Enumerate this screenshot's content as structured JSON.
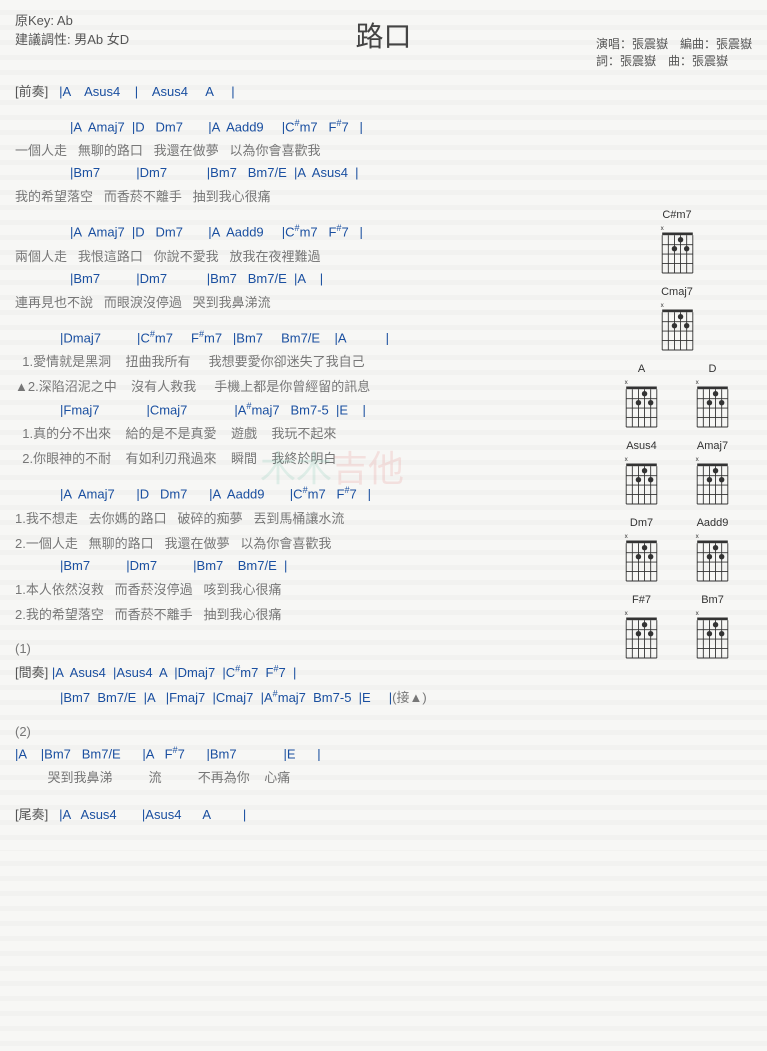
{
  "header": {
    "original_key": "原Key: Ab",
    "suggested_key": "建議調性: 男Ab 女D",
    "title": "路口",
    "credit_singer": "演唱：張震嶽",
    "credit_arranger": "編曲：張震嶽",
    "credit_lyrics": "詞：張震嶽",
    "credit_composer": "曲：張震嶽"
  },
  "intro": {
    "label": "[前奏]",
    "chords": "   |A    Asus4    |    Asus4     A     |"
  },
  "verse1": {
    "l1c": "|A  Amaj7  |D   Dm7       |A  Aadd9     |C",
    "l1c_sharp": "#",
    "l1c2": "m7   F",
    "l1c2_sharp": "#",
    "l1c3": "7   |",
    "l1l": "一個人走   無聊的路口   我還在做夢   以為你會喜歡我",
    "l2c": "|Bm7          |Dm7           |Bm7   Bm7/E  |A  Asus4  |",
    "l2l": "我的希望落空   而香菸不離手   抽到我心很痛"
  },
  "verse2": {
    "l1c": "|A  Amaj7  |D   Dm7       |A  Aadd9     |C",
    "l1c_sharp": "#",
    "l1c2": "m7   F",
    "l1c2_sharp": "#",
    "l1c3": "7   |",
    "l1l": "兩個人走   我恨這路口   你說不愛我   放我在夜裡難過",
    "l2c": "|Bm7          |Dm7           |Bm7   Bm7/E  |A    |",
    "l2l": "連再見也不說   而眼淚沒停過   哭到我鼻涕流"
  },
  "chorus": {
    "l1c": "|Dmaj7          |C",
    "l1c_s1": "#",
    "l1c2": "m7     F",
    "l1c_s2": "#",
    "l1c3": "m7   |Bm7     Bm7/E    |A           |",
    "l1l1": "  1.愛情就是黑洞    扭曲我所有     我想要愛你卻迷失了我自己",
    "l1l2": "▲2.深陷沼泥之中    沒有人救我     手機上都是你曾經留的訊息",
    "l2c": "|Fmaj7             |Cmaj7             |A",
    "l2c_s1": "#",
    "l2c2": "maj7   Bm7-5  |E    |",
    "l2l1": "  1.真的分不出來    給的是不是真愛    遊戲    我玩不起來",
    "l2l2": "  2.你眼神的不耐    有如利刃飛過來    瞬間    我終於明白"
  },
  "verse3": {
    "l1c": "|A  Amaj7      |D   Dm7      |A  Aadd9       |C",
    "l1c_s1": "#",
    "l1c2": "m7   F",
    "l1c_s2": "#",
    "l1c3": "7   |",
    "l1l1": "1.我不想走   去你媽的路口   破碎的痴夢   丟到馬桶讓水流",
    "l1l2": "2.一個人走   無聊的路口   我還在做夢   以為你會喜歡我",
    "l2c": "|Bm7          |Dm7          |Bm7    Bm7/E  |",
    "l2l1": "1.本人依然沒救   而香菸沒停過   咳到我心很痛",
    "l2l2": "2.我的希望落空   而香菸不離手   抽到我心很痛"
  },
  "bridge": {
    "marker": "(1)",
    "label": "[間奏]",
    "l1": " |A  Asus4  |Asus4  A  |Dmaj7  |C",
    "l1_s1": "#",
    "l1b": "m7  F",
    "l1_s2": "#",
    "l1c": "7  |",
    "l2": "|Bm7  Bm7/E  |A   |Fmaj7  |Cmaj7  |A",
    "l2_s1": "#",
    "l2b": "maj7  Bm7-5  |E     |",
    "l2tail": "(接▲)"
  },
  "ending": {
    "marker": "(2)",
    "l1c": "|A    |Bm7   Bm7/E      |A   F",
    "l1c_s1": "#",
    "l1c2": "7      |Bm7             |E      |",
    "l1l": "         哭到我鼻涕          流          不再為你    心痛"
  },
  "outro": {
    "label": "[尾奏]",
    "chords": "   |A   Asus4       |Asus4      A         |"
  },
  "diagrams": {
    "names": [
      "C#m7",
      "Cmaj7",
      "A",
      "D",
      "Asus4",
      "Amaj7",
      "Dm7",
      "Aadd9",
      "F#7",
      "Bm7"
    ]
  },
  "watermark": {
    "t1": "木木",
    "t2": "吉他"
  }
}
